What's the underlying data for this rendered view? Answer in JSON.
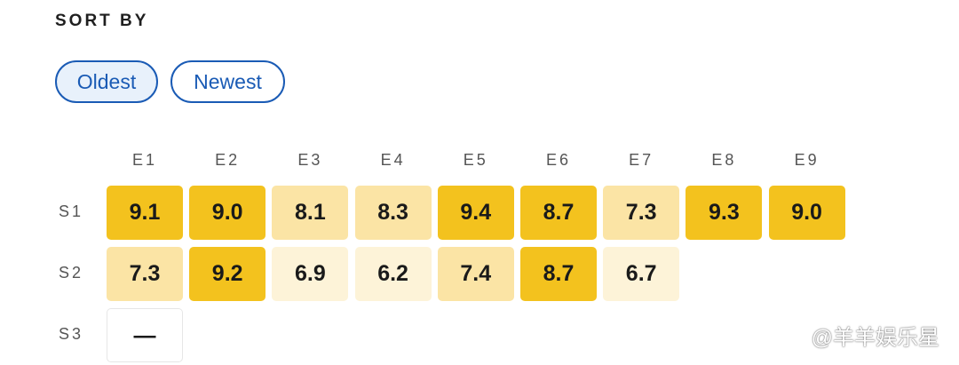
{
  "header": {
    "title": "SORT BY"
  },
  "sort_buttons": [
    {
      "label": "Oldest",
      "selected": true
    },
    {
      "label": "Newest",
      "selected": false
    }
  ],
  "table": {
    "columns": [
      "E1",
      "E2",
      "E3",
      "E4",
      "E5",
      "E6",
      "E7",
      "E8",
      "E9"
    ],
    "rows": [
      {
        "label": "S1",
        "cells": [
          "9.1",
          "9.0",
          "8.1",
          "8.3",
          "9.4",
          "8.7",
          "7.3",
          "9.3",
          "9.0"
        ]
      },
      {
        "label": "S2",
        "cells": [
          "7.3",
          "9.2",
          "6.9",
          "6.2",
          "7.4",
          "8.7",
          "6.7"
        ]
      },
      {
        "label": "S3",
        "cells": [
          "—"
        ]
      }
    ]
  },
  "watermark": "@羊羊娱乐星"
}
